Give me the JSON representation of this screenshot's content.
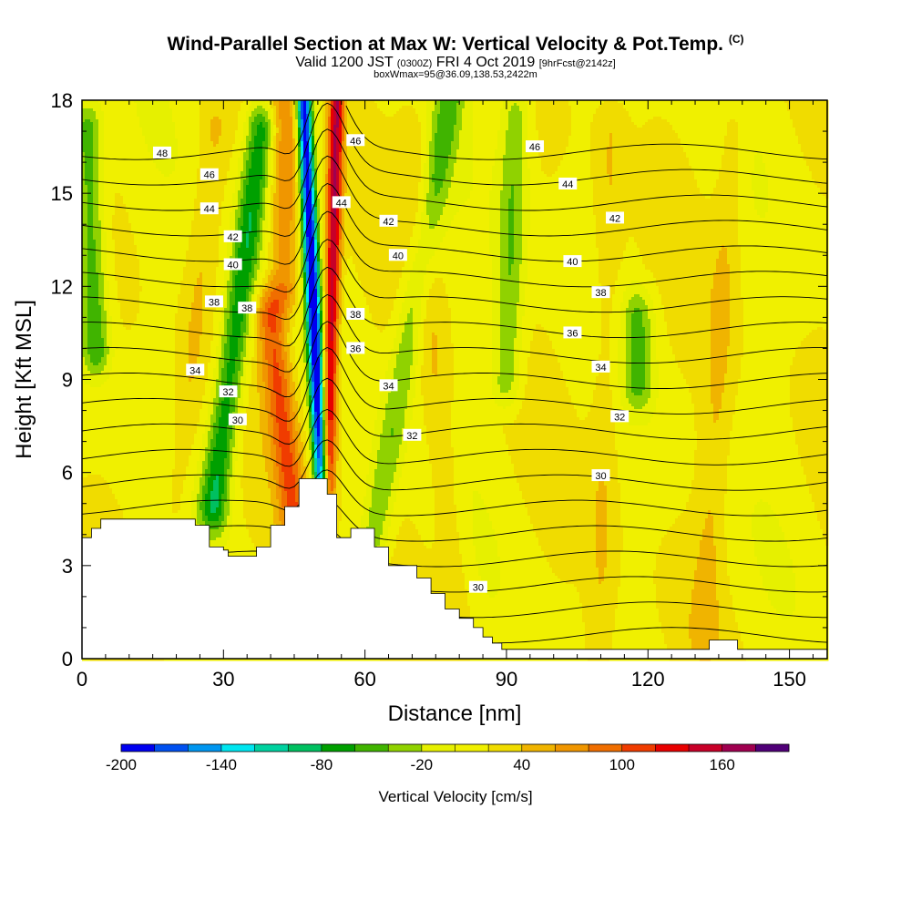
{
  "header": {
    "title": "Wind-Parallel Section at Max W: Vertical Velocity & Pot.Temp.",
    "copyright": "(C)",
    "valid_prefix": "Valid 1200 JST",
    "valid_utc": "(0300Z)",
    "valid_date": "FRI 4 Oct 2019",
    "forecast_tag": "[9hrFcst@2142z]",
    "box_info": "boxWmax=95@36.09,138.53,2422m"
  },
  "chart_data": {
    "type": "heatmap",
    "title": "Wind-Parallel Section at Max W: Vertical Velocity & Pot.Temp.",
    "xlabel": "Distance [nm]",
    "ylabel": "Height [Kft MSL]",
    "xlim": [
      0,
      158
    ],
    "ylim": [
      0,
      18
    ],
    "xticks": [
      0,
      30,
      60,
      90,
      120,
      150
    ],
    "yticks": [
      0,
      3,
      6,
      9,
      12,
      15,
      18
    ],
    "colorbar": {
      "title": "Vertical Velocity [cm/s]",
      "levels": [
        -200,
        -180,
        -160,
        -140,
        -120,
        -100,
        -80,
        -60,
        -40,
        -20,
        0,
        20,
        40,
        60,
        80,
        100,
        120,
        140,
        160,
        180
      ],
      "tick_labels": [
        "-200",
        "-140",
        "-80",
        "-20",
        "40",
        "100",
        "160"
      ],
      "colors": [
        "#0000f0",
        "#0050f0",
        "#0096f0",
        "#00e6f0",
        "#00d2a0",
        "#00c060",
        "#00a000",
        "#40b400",
        "#90d200",
        "#e6f000",
        "#f0f000",
        "#f0dc00",
        "#f0b400",
        "#f09600",
        "#f06e00",
        "#f03c00",
        "#e80000",
        "#c80028",
        "#a00050",
        "#500078"
      ]
    },
    "terrain": [
      [
        0,
        3.9
      ],
      [
        2,
        3.9
      ],
      [
        2,
        4.2
      ],
      [
        4,
        4.2
      ],
      [
        4,
        4.5
      ],
      [
        24,
        4.5
      ],
      [
        24,
        4.3
      ],
      [
        27,
        4.3
      ],
      [
        27,
        3.6
      ],
      [
        30,
        3.6
      ],
      [
        30,
        3.5
      ],
      [
        31,
        3.5
      ],
      [
        31,
        3.3
      ],
      [
        37,
        3.3
      ],
      [
        37,
        3.6
      ],
      [
        40,
        3.6
      ],
      [
        40,
        4.3
      ],
      [
        43,
        4.3
      ],
      [
        43,
        4.9
      ],
      [
        46,
        4.9
      ],
      [
        46,
        5.8
      ],
      [
        52,
        5.8
      ],
      [
        52,
        5.3
      ],
      [
        54,
        5.3
      ],
      [
        54,
        3.9
      ],
      [
        57,
        3.9
      ],
      [
        57,
        4.2
      ],
      [
        62,
        4.2
      ],
      [
        62,
        3.6
      ],
      [
        65,
        3.6
      ],
      [
        65,
        3.0
      ],
      [
        71,
        3.0
      ],
      [
        71,
        2.6
      ],
      [
        74,
        2.6
      ],
      [
        74,
        2.1
      ],
      [
        77,
        2.1
      ],
      [
        77,
        1.6
      ],
      [
        80,
        1.6
      ],
      [
        80,
        1.3
      ],
      [
        83,
        1.3
      ],
      [
        83,
        1.0
      ],
      [
        85,
        1.0
      ],
      [
        85,
        0.7
      ],
      [
        87,
        0.7
      ],
      [
        87,
        0.5
      ],
      [
        89,
        0.5
      ],
      [
        89,
        0.3
      ],
      [
        133,
        0.3
      ],
      [
        133,
        0.6
      ],
      [
        139,
        0.6
      ],
      [
        139,
        0.3
      ],
      [
        158,
        0.3
      ]
    ],
    "vertical_velocity_features": [
      {
        "kind": "updraft",
        "x_base": 52,
        "x_top": 54,
        "z_base": 5,
        "z_top": 18,
        "peak": 160
      },
      {
        "kind": "downdraft",
        "x_base": 51,
        "x_top": 47,
        "z_base": 5,
        "z_top": 18,
        "peak": -200
      },
      {
        "kind": "updraft",
        "x_base": 45,
        "x_top": 40,
        "z_base": 4.5,
        "z_top": 11,
        "peak": 100
      },
      {
        "kind": "updraft",
        "x_base": 43,
        "x_top": 43,
        "z_base": 12,
        "z_top": 18,
        "peak": 80
      },
      {
        "kind": "downdraft",
        "x_base": 28,
        "x_top": 38,
        "z_base": 5,
        "z_top": 17,
        "peak": -80
      },
      {
        "kind": "downdraft",
        "x_base": 62,
        "x_top": 78,
        "z_base": 4,
        "z_top": 18,
        "peak": -40
      },
      {
        "kind": "downdraft",
        "x_base": 90,
        "x_top": 92,
        "z_base": 9,
        "z_top": 17.5,
        "peak": -40
      },
      {
        "kind": "updraft",
        "x_base": 80,
        "x_top": 70,
        "z_base": 1,
        "z_top": 17,
        "peak": 40
      },
      {
        "kind": "downdraft",
        "x_base": 3,
        "x_top": 1,
        "z_base": 10,
        "z_top": 17,
        "peak": -60
      },
      {
        "kind": "updraft",
        "x_base": 110,
        "x_top": 112,
        "z_base": 0.5,
        "z_top": 17,
        "peak": 40
      },
      {
        "kind": "downdraft",
        "x_base": 118,
        "x_top": 118,
        "z_base": 9,
        "z_top": 11,
        "peak": -40
      },
      {
        "kind": "updraft",
        "x_base": 132,
        "x_top": 138,
        "z_base": 1,
        "z_top": 17,
        "peak": 40
      },
      {
        "kind": "updraft",
        "x_base": 20,
        "x_top": 28,
        "z_base": 5,
        "z_top": 17,
        "peak": 40
      }
    ],
    "potential_temperature_contours": {
      "levels": [
        29,
        30,
        31,
        32,
        33,
        34,
        35,
        36,
        37,
        38,
        39,
        40,
        41,
        42,
        43,
        44,
        45,
        46,
        47,
        48,
        49
      ],
      "labeled_levels": [
        30,
        32,
        34,
        36,
        38,
        40,
        42,
        44,
        46,
        48
      ]
    },
    "contour_labels": [
      {
        "text": "48",
        "x": 17,
        "z": 16.3
      },
      {
        "text": "46",
        "x": 27,
        "z": 15.6
      },
      {
        "text": "44",
        "x": 27,
        "z": 14.5
      },
      {
        "text": "42",
        "x": 32,
        "z": 13.6
      },
      {
        "text": "40",
        "x": 32,
        "z": 12.7
      },
      {
        "text": "38",
        "x": 28,
        "z": 11.5
      },
      {
        "text": "38",
        "x": 35,
        "z": 11.3
      },
      {
        "text": "34",
        "x": 24,
        "z": 9.3
      },
      {
        "text": "32",
        "x": 31,
        "z": 8.6
      },
      {
        "text": "30",
        "x": 33,
        "z": 7.7
      },
      {
        "text": "44",
        "x": 55,
        "z": 14.7
      },
      {
        "text": "46",
        "x": 58,
        "z": 16.7
      },
      {
        "text": "42",
        "x": 65,
        "z": 14.1
      },
      {
        "text": "40",
        "x": 67,
        "z": 13.0
      },
      {
        "text": "38",
        "x": 58,
        "z": 11.1
      },
      {
        "text": "36",
        "x": 58,
        "z": 10.0
      },
      {
        "text": "34",
        "x": 65,
        "z": 8.8
      },
      {
        "text": "32",
        "x": 70,
        "z": 7.2
      },
      {
        "text": "30",
        "x": 84,
        "z": 2.3
      },
      {
        "text": "46",
        "x": 96,
        "z": 16.5
      },
      {
        "text": "44",
        "x": 103,
        "z": 15.3
      },
      {
        "text": "42",
        "x": 113,
        "z": 14.2
      },
      {
        "text": "40",
        "x": 104,
        "z": 12.8
      },
      {
        "text": "38",
        "x": 110,
        "z": 11.8
      },
      {
        "text": "36",
        "x": 104,
        "z": 10.5
      },
      {
        "text": "34",
        "x": 110,
        "z": 9.4
      },
      {
        "text": "32",
        "x": 114,
        "z": 7.8
      },
      {
        "text": "30",
        "x": 110,
        "z": 5.9
      }
    ]
  }
}
